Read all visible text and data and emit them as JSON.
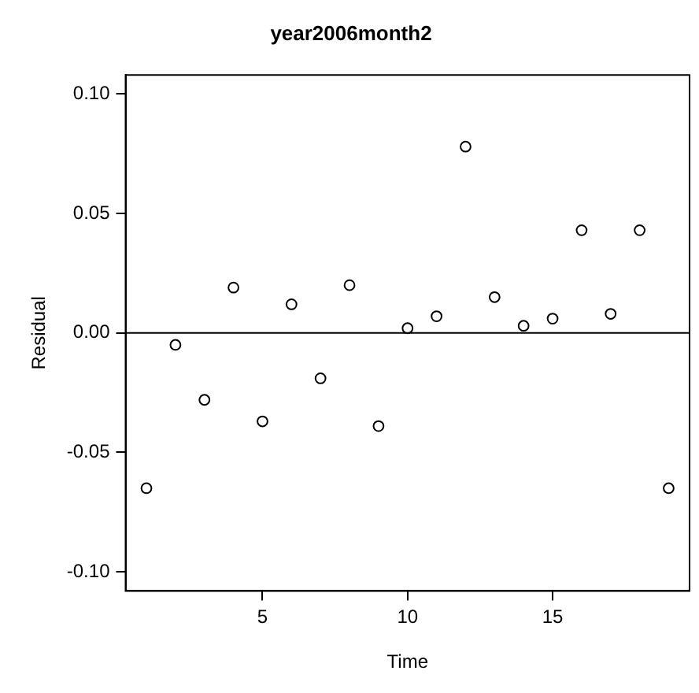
{
  "chart_data": {
    "type": "scatter",
    "title": "year2006month2",
    "xlabel": "Time",
    "ylabel": "Residual",
    "x": [
      1,
      2,
      3,
      4,
      5,
      6,
      7,
      8,
      9,
      10,
      11,
      12,
      13,
      14,
      15,
      16,
      17,
      18,
      19
    ],
    "series": [
      {
        "color": "#000000",
        "values": [
          -0.065,
          -0.005,
          -0.028,
          0.019,
          -0.037,
          0.012,
          -0.019,
          0.02,
          -0.039,
          0.002,
          0.007,
          0.078,
          0.015,
          0.003,
          0.006,
          0.043,
          0.008,
          0.043,
          -0.065
        ]
      }
    ],
    "xlim": [
      0.28,
      19.72
    ],
    "xticks": [
      5,
      10,
      15
    ],
    "ylim": [
      -0.108,
      0.108
    ],
    "yticks": [
      {
        "value": -0.1,
        "label": "-0.10"
      },
      {
        "value": -0.05,
        "label": "-0.05"
      },
      {
        "value": 0,
        "label": "0.00"
      },
      {
        "value": 0.05,
        "label": "0.05"
      },
      {
        "value": 0.1,
        "label": "0.10"
      }
    ],
    "ref_lines": [
      {
        "axis": "y",
        "value": 0,
        "color": "#000000"
      }
    ],
    "marker": "circle",
    "grid": false,
    "legend": false
  }
}
